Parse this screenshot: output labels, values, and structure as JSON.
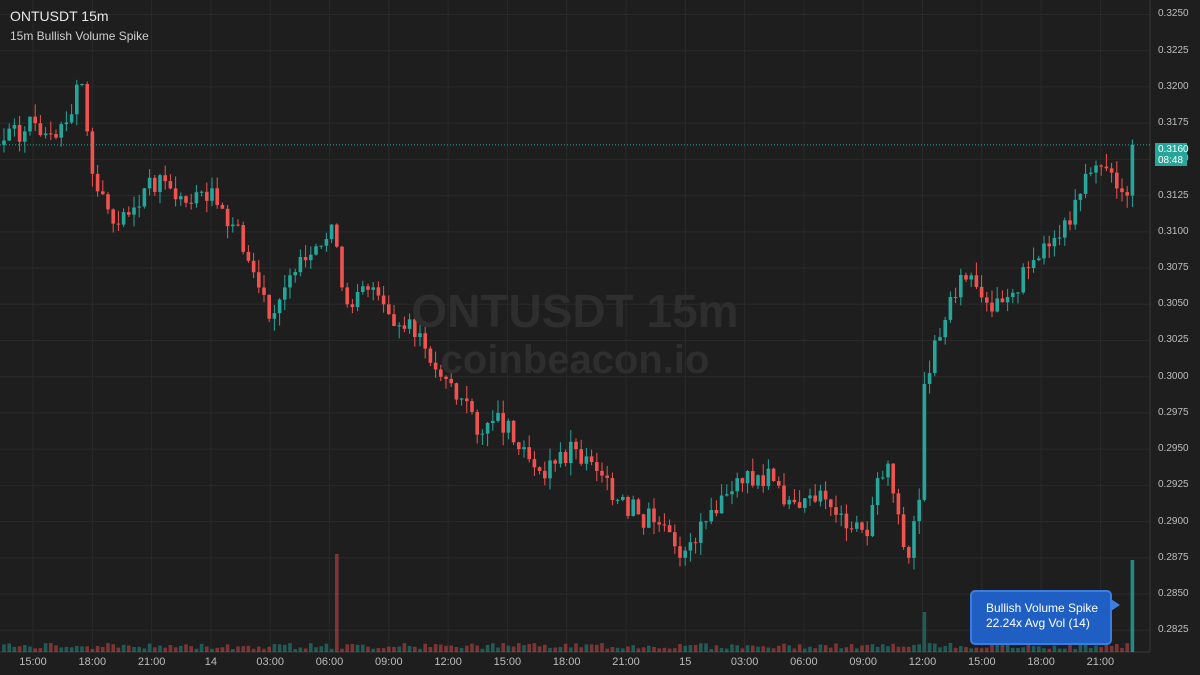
{
  "header": {
    "title": "ONTUSDT 15m",
    "subtitle": "15m Bullish Volume Spike"
  },
  "watermark": {
    "line1": "ONTUSDT 15m",
    "line2": "coinbeacon.io"
  },
  "price_badge": {
    "price": "0.3160",
    "countdown": "08:48",
    "color": "#26a69a"
  },
  "callout": {
    "line1": "Bullish Volume Spike",
    "line2": "22.24x Avg Vol (14)",
    "color": "#1f5fc4"
  },
  "colors": {
    "background": "#1e1e1e",
    "up": "#26a69a",
    "down": "#ef5350",
    "grid": "#2a2a2a"
  },
  "chart_data": {
    "type": "candlestick",
    "symbol": "ONTUSDT",
    "interval": "15m",
    "ylim": [
      0.281,
      0.326
    ],
    "y_ticks": [
      "0.3250",
      "0.3225",
      "0.3200",
      "0.3175",
      "0.3150",
      "0.3125",
      "0.3100",
      "0.3075",
      "0.3050",
      "0.3025",
      "0.3000",
      "0.2975",
      "0.2950",
      "0.2925",
      "0.2900",
      "0.2875",
      "0.2850",
      "0.2825"
    ],
    "x_ticks": [
      "15:00",
      "18:00",
      "21:00",
      "14",
      "03:00",
      "06:00",
      "09:00",
      "12:00",
      "15:00",
      "18:00",
      "21:00",
      "15",
      "03:00",
      "06:00",
      "09:00",
      "12:00",
      "15:00",
      "18:00",
      "21:00"
    ],
    "last_price": 0.316,
    "close_path": [
      [
        0,
        0.3163
      ],
      [
        6,
        0.3175
      ],
      [
        10,
        0.3165
      ],
      [
        15,
        0.3202
      ],
      [
        17,
        0.314
      ],
      [
        22,
        0.3105
      ],
      [
        27,
        0.313
      ],
      [
        31,
        0.3135
      ],
      [
        35,
        0.312
      ],
      [
        40,
        0.313
      ],
      [
        44,
        0.3105
      ],
      [
        47,
        0.308
      ],
      [
        51,
        0.304
      ],
      [
        55,
        0.307
      ],
      [
        60,
        0.309
      ],
      [
        63,
        0.3105
      ],
      [
        66,
        0.305
      ],
      [
        70,
        0.306
      ],
      [
        75,
        0.3035
      ],
      [
        80,
        0.303
      ],
      [
        84,
        0.3
      ],
      [
        88,
        0.2985
      ],
      [
        91,
        0.296
      ],
      [
        95,
        0.2975
      ],
      [
        99,
        0.295
      ],
      [
        103,
        0.2935
      ],
      [
        106,
        0.294
      ],
      [
        110,
        0.295
      ],
      [
        114,
        0.2935
      ],
      [
        118,
        0.2915
      ],
      [
        122,
        0.2905
      ],
      [
        126,
        0.2898
      ],
      [
        129,
        0.2883
      ],
      [
        131,
        0.288
      ],
      [
        134,
        0.29
      ],
      [
        138,
        0.2918
      ],
      [
        141,
        0.293
      ],
      [
        145,
        0.2932
      ],
      [
        148,
        0.2928
      ],
      [
        151,
        0.2915
      ],
      [
        155,
        0.2918
      ],
      [
        159,
        0.291
      ],
      [
        163,
        0.2895
      ],
      [
        166,
        0.289
      ],
      [
        168,
        0.293
      ],
      [
        170,
        0.294
      ],
      [
        172,
        0.2905
      ],
      [
        174,
        0.2875
      ],
      [
        176,
        0.2915
      ],
      [
        177,
        0.2995
      ],
      [
        179,
        0.3025
      ],
      [
        182,
        0.3055
      ],
      [
        186,
        0.307
      ],
      [
        190,
        0.3045
      ],
      [
        193,
        0.3055
      ],
      [
        197,
        0.3075
      ],
      [
        201,
        0.309
      ],
      [
        205,
        0.3105
      ],
      [
        208,
        0.314
      ],
      [
        211,
        0.3145
      ],
      [
        214,
        0.313
      ],
      [
        216,
        0.3125
      ],
      [
        217,
        0.316
      ]
    ],
    "volume_spike": {
      "ratio": "22.24x",
      "avg_period": 14
    }
  }
}
